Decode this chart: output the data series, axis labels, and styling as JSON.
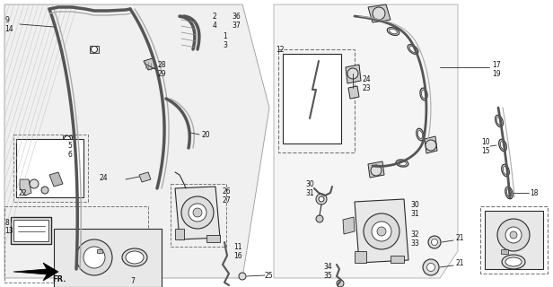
{
  "bg_color": "#ffffff",
  "fig_width": 6.16,
  "fig_height": 3.2,
  "dpi": 100,
  "line_color": "#2a2a2a",
  "label_color": "#111111",
  "label_fontsize": 5.5,
  "gray_fill": "#e8e8e8",
  "light_gray": "#cccccc",
  "mid_gray": "#999999"
}
